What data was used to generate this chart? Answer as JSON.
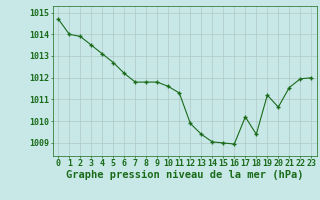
{
  "x": [
    0,
    1,
    2,
    3,
    4,
    5,
    6,
    7,
    8,
    9,
    10,
    11,
    12,
    13,
    14,
    15,
    16,
    17,
    18,
    19,
    20,
    21,
    22,
    23
  ],
  "y": [
    1014.7,
    1014.0,
    1013.9,
    1013.5,
    1013.1,
    1012.7,
    1012.2,
    1011.8,
    1011.8,
    1011.8,
    1011.6,
    1011.3,
    1009.9,
    1009.4,
    1009.05,
    1009.0,
    1008.95,
    1010.2,
    1009.4,
    1011.2,
    1010.65,
    1011.55,
    1011.95,
    1012.0
  ],
  "line_color": "#1a6b1a",
  "marker": "+",
  "bg_color": "#c8e8e8",
  "grid_color": "#b0c8c8",
  "ylabel_ticks": [
    1009,
    1010,
    1011,
    1012,
    1013,
    1014,
    1015
  ],
  "xticks": [
    0,
    1,
    2,
    3,
    4,
    5,
    6,
    7,
    8,
    9,
    10,
    11,
    12,
    13,
    14,
    15,
    16,
    17,
    18,
    19,
    20,
    21,
    22,
    23
  ],
  "xlabel": "Graphe pression niveau de la mer (hPa)",
  "ylim": [
    1008.4,
    1015.3
  ],
  "xlim": [
    -0.5,
    23.5
  ],
  "tick_fontsize": 6,
  "xlabel_fontsize": 7.5
}
